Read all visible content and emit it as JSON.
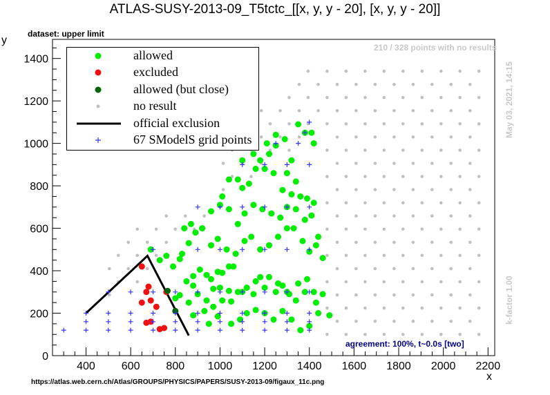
{
  "header": {
    "title": "ATLAS-SUSY-2013-09_T5tctc_[[x, y, y - 20], [x, y, y - 20]]",
    "dataset": "dataset: upper limit",
    "no_results_note": "210 / 328 points with no results",
    "date_note": "May 03, 2021, 14:15",
    "kfactor_note": "k-factor 1.00",
    "agreement_note": "agreement: 100%, t~0.0s [two]",
    "source_url": "https://atlas.web.cern.ch/Atlas/GROUPS/PHYSICS/PAPERS/SUSY-2013-09/figaux_11c.png"
  },
  "colors": {
    "allowed": "#00ee00",
    "excluded": "#ee1111",
    "allowed_close": "#006400",
    "no_result": "#c0c0c0",
    "official_exclusion": "#000000",
    "grid_points": "#3333ff"
  },
  "chart_data": {
    "type": "scatter",
    "xlabel": "x",
    "ylabel": "y",
    "xlim": [
      250,
      2230
    ],
    "ylim": [
      0,
      1490
    ],
    "xticks": [
      400,
      600,
      800,
      1000,
      1200,
      1400,
      1600,
      1800,
      2000,
      2200
    ],
    "yticks": [
      0,
      200,
      400,
      600,
      800,
      1000,
      1200,
      1400
    ],
    "legend": {
      "position": "top-left",
      "entries": [
        {
          "key": "allowed",
          "label": "allowed"
        },
        {
          "key": "excluded",
          "label": "excluded"
        },
        {
          "key": "allowed_close",
          "label": "allowed (but close)"
        },
        {
          "key": "no_result",
          "label": "no result"
        },
        {
          "key": "official_exclusion",
          "label": "official exclusion"
        },
        {
          "key": "grid_points",
          "label": "67 SModelS grid points"
        }
      ]
    },
    "series": [
      {
        "key": "excluded",
        "marker": "dot",
        "points": [
          [
            650,
            420
          ],
          [
            680,
            325
          ],
          [
            670,
            300
          ],
          [
            690,
            260
          ],
          [
            650,
            250
          ],
          [
            670,
            155
          ],
          [
            690,
            160
          ],
          [
            715,
            230
          ],
          [
            730,
            125
          ],
          [
            750,
            130
          ],
          [
            760,
            300
          ]
        ]
      },
      {
        "key": "allowed_close",
        "marker": "dot",
        "points": [
          [
            765,
            305
          ],
          [
            800,
            210
          ]
        ]
      },
      {
        "key": "allowed",
        "marker": "dot",
        "points": [
          [
            690,
            500
          ],
          [
            730,
            450
          ],
          [
            760,
            470
          ],
          [
            790,
            420
          ],
          [
            820,
            455
          ],
          [
            850,
            350
          ],
          [
            880,
            375
          ],
          [
            910,
            405
          ],
          [
            940,
            380
          ],
          [
            960,
            360
          ],
          [
            990,
            395
          ],
          [
            1010,
            390
          ],
          [
            1040,
            420
          ],
          [
            1060,
            420
          ],
          [
            800,
            270
          ],
          [
            820,
            285
          ],
          [
            860,
            250
          ],
          [
            880,
            190
          ],
          [
            930,
            210
          ],
          [
            970,
            230
          ],
          [
            1010,
            260
          ],
          [
            1050,
            255
          ],
          [
            1100,
            300
          ],
          [
            1150,
            290
          ],
          [
            1200,
            320
          ],
          [
            1250,
            300
          ],
          [
            1280,
            330
          ],
          [
            1310,
            290
          ],
          [
            1350,
            340
          ],
          [
            1390,
            360
          ],
          [
            1430,
            250
          ],
          [
            880,
            330
          ],
          [
            900,
            290
          ],
          [
            940,
            260
          ],
          [
            970,
            315
          ],
          [
            1000,
            320
          ],
          [
            1040,
            305
          ],
          [
            1080,
            300
          ],
          [
            1120,
            320
          ],
          [
            1160,
            350
          ],
          [
            1180,
            370
          ],
          [
            1220,
            370
          ],
          [
            1260,
            340
          ],
          [
            1300,
            300
          ],
          [
            1340,
            260
          ],
          [
            1380,
            300
          ],
          [
            1420,
            300
          ],
          [
            1460,
            290
          ],
          [
            950,
            150
          ],
          [
            990,
            185
          ],
          [
            1050,
            150
          ],
          [
            1090,
            170
          ],
          [
            1120,
            200
          ],
          [
            1160,
            215
          ],
          [
            1200,
            200
          ],
          [
            1240,
            170
          ],
          [
            1280,
            210
          ],
          [
            1320,
            170
          ],
          [
            1360,
            120
          ],
          [
            1400,
            140
          ],
          [
            1440,
            200
          ],
          [
            1490,
            190
          ],
          [
            830,
            480
          ],
          [
            860,
            530
          ],
          [
            890,
            580
          ],
          [
            920,
            600
          ],
          [
            960,
            520
          ],
          [
            990,
            550
          ],
          [
            1030,
            500
          ],
          [
            1070,
            480
          ],
          [
            1110,
            540
          ],
          [
            1140,
            560
          ],
          [
            1180,
            500
          ],
          [
            1220,
            520
          ],
          [
            1260,
            560
          ],
          [
            1300,
            600
          ],
          [
            1330,
            600
          ],
          [
            1370,
            540
          ],
          [
            1400,
            490
          ],
          [
            1430,
            520
          ],
          [
            1460,
            460
          ],
          [
            840,
            600
          ],
          [
            870,
            620
          ],
          [
            920,
            600
          ],
          [
            960,
            680
          ],
          [
            1000,
            710
          ],
          [
            1040,
            690
          ],
          [
            1080,
            620
          ],
          [
            1110,
            670
          ],
          [
            1150,
            710
          ],
          [
            1190,
            690
          ],
          [
            1230,
            670
          ],
          [
            1270,
            650
          ],
          [
            1300,
            700
          ],
          [
            1340,
            690
          ],
          [
            1380,
            640
          ],
          [
            1410,
            660
          ],
          [
            1440,
            560
          ],
          [
            1010,
            750
          ],
          [
            1040,
            830
          ],
          [
            1080,
            830
          ],
          [
            1100,
            790
          ],
          [
            1130,
            810
          ],
          [
            1160,
            880
          ],
          [
            1200,
            880
          ],
          [
            1240,
            860
          ],
          [
            1280,
            780
          ],
          [
            1320,
            760
          ],
          [
            1360,
            750
          ],
          [
            1390,
            740
          ],
          [
            1420,
            720
          ],
          [
            1180,
            920
          ],
          [
            1220,
            950
          ],
          [
            1250,
            1040
          ],
          [
            1290,
            1020
          ],
          [
            1320,
            920
          ],
          [
            1350,
            1090
          ],
          [
            1380,
            1050
          ],
          [
            1410,
            1050
          ],
          [
            1420,
            1000
          ],
          [
            1100,
            920
          ],
          [
            1150,
            950
          ],
          [
            1210,
            1000
          ],
          [
            1250,
            990
          ],
          [
            1300,
            860
          ],
          [
            1340,
            820
          ]
        ]
      },
      {
        "key": "no_result",
        "marker": "dot",
        "points": []
      },
      {
        "key": "grid_points",
        "marker": "plus",
        "points": [
          [
            300,
            120
          ],
          [
            400,
            120
          ],
          [
            500,
            120
          ],
          [
            600,
            120
          ],
          [
            700,
            120
          ],
          [
            800,
            120
          ],
          [
            900,
            120
          ],
          [
            1000,
            120
          ],
          [
            1100,
            120
          ],
          [
            1200,
            120
          ],
          [
            1300,
            120
          ],
          [
            1400,
            120
          ],
          [
            400,
            160
          ],
          [
            500,
            160
          ],
          [
            600,
            160
          ],
          [
            700,
            160
          ],
          [
            800,
            160
          ],
          [
            900,
            160
          ],
          [
            1000,
            160
          ],
          [
            1100,
            160
          ],
          [
            1200,
            160
          ],
          [
            1300,
            160
          ],
          [
            1400,
            160
          ],
          [
            400,
            200
          ],
          [
            500,
            200
          ],
          [
            600,
            200
          ],
          [
            700,
            200
          ],
          [
            800,
            200
          ],
          [
            900,
            200
          ],
          [
            1000,
            200
          ],
          [
            1100,
            200
          ],
          [
            1200,
            200
          ],
          [
            1300,
            200
          ],
          [
            1400,
            200
          ],
          [
            500,
            300
          ],
          [
            600,
            300
          ],
          [
            700,
            300
          ],
          [
            800,
            300
          ],
          [
            900,
            300
          ],
          [
            1000,
            300
          ],
          [
            1100,
            300
          ],
          [
            1200,
            300
          ],
          [
            1300,
            300
          ],
          [
            1400,
            300
          ],
          [
            700,
            500
          ],
          [
            900,
            500
          ],
          [
            1000,
            500
          ],
          [
            1100,
            500
          ],
          [
            1200,
            500
          ],
          [
            1300,
            500
          ],
          [
            1400,
            500
          ],
          [
            900,
            700
          ],
          [
            1000,
            700
          ],
          [
            1100,
            700
          ],
          [
            1200,
            700
          ],
          [
            1300,
            700
          ],
          [
            1400,
            700
          ],
          [
            1100,
            900
          ],
          [
            1200,
            900
          ],
          [
            1300,
            900
          ],
          [
            1400,
            900
          ],
          [
            1150,
            1000
          ],
          [
            1250,
            1000
          ],
          [
            1350,
            1000
          ],
          [
            1400,
            1100
          ],
          [
            1380,
            1050
          ]
        ]
      },
      {
        "key": "official_exclusion",
        "marker": "line",
        "points": [
          [
            400,
            200
          ],
          [
            675,
            470
          ],
          [
            860,
            95
          ]
        ]
      }
    ]
  }
}
